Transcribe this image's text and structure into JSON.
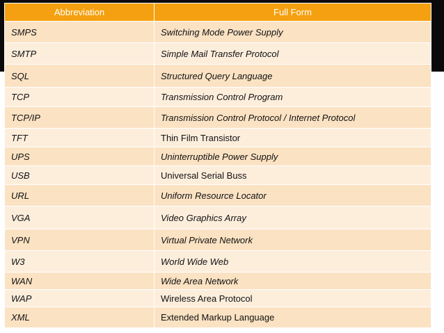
{
  "header": {
    "abbreviation": "Abbreviation",
    "full_form": "Full Form"
  },
  "rows": [
    {
      "abbr": "SMPS",
      "full": "Switching Mode Power Supply"
    },
    {
      "abbr": "SMTP",
      "full": "Simple Mail Transfer Protocol"
    },
    {
      "abbr": "SQL",
      "full": "Structured Query Language"
    },
    {
      "abbr": "TCP",
      "full": "Transmission Control Program"
    },
    {
      "abbr": "TCP/IP",
      "full": "Transmission Control Protocol / Internet Protocol"
    },
    {
      "abbr": "TFT",
      "full": "Thin Film Transistor"
    },
    {
      "abbr": "UPS",
      "full": "Uninterruptible Power Supply"
    },
    {
      "abbr": "USB",
      "full": "Universal Serial Buss"
    },
    {
      "abbr": "URL",
      "full": "Uniform Resource Locator"
    },
    {
      "abbr": "VGA",
      "full": "Video Graphics Array"
    },
    {
      "abbr": "VPN",
      "full": "Virtual Private Network"
    },
    {
      "abbr": "W3",
      "full": "World Wide Web"
    },
    {
      "abbr": "WAN",
      "full": "Wide Area Network"
    },
    {
      "abbr": "WAP",
      "full": "Wireless Area Protocol"
    },
    {
      "abbr": "XML",
      "full": "Extended Markup Language"
    }
  ],
  "colors": {
    "header": "#f5a010",
    "row_dark": "#fbe2c3",
    "row_light": "#fdeedc",
    "band": "#0a0a0a"
  }
}
